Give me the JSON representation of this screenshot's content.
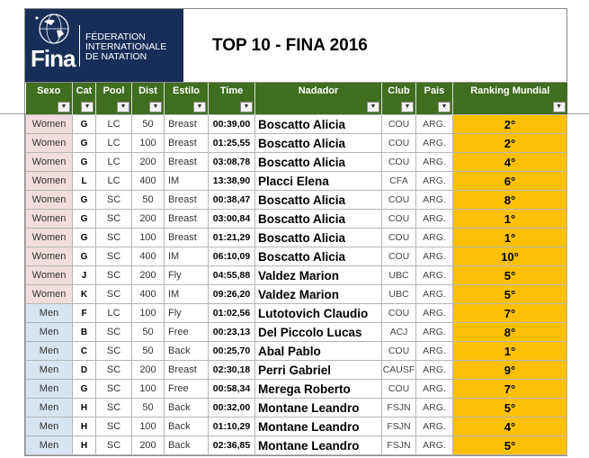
{
  "header": {
    "logo_word": "Fina",
    "org_lines": [
      "FÉDERATION",
      "INTERNATIONALE",
      "DE NATATION"
    ],
    "title": "TOP 10  - FINA 2016"
  },
  "columns": [
    "Sexo",
    "Cat",
    "Pool",
    "Dist",
    "Estilo",
    "Time",
    "Nadador",
    "Club",
    "Pais",
    "Ranking Mundial"
  ],
  "filter_glyph": "▼",
  "rows": [
    {
      "sexo": "Women",
      "cat": "G",
      "pool": "LC",
      "dist": "50",
      "estilo": "Breast",
      "time": "00:39,00",
      "nadador": "Boscatto Alicia",
      "club": "COU",
      "pais": "ARG.",
      "rank": "2°"
    },
    {
      "sexo": "Women",
      "cat": "G",
      "pool": "LC",
      "dist": "100",
      "estilo": "Breast",
      "time": "01:25,55",
      "nadador": "Boscatto Alicia",
      "club": "COU",
      "pais": "ARG.",
      "rank": "2°"
    },
    {
      "sexo": "Women",
      "cat": "G",
      "pool": "LC",
      "dist": "200",
      "estilo": "Breast",
      "time": "03:08,78",
      "nadador": "Boscatto Alicia",
      "club": "COU",
      "pais": "ARG.",
      "rank": "4°"
    },
    {
      "sexo": "Women",
      "cat": "L",
      "pool": "LC",
      "dist": "400",
      "estilo": "IM",
      "time": "13:38,90",
      "nadador": "Placci Elena",
      "club": "CFA",
      "pais": "ARG.",
      "rank": "6°"
    },
    {
      "sexo": "Women",
      "cat": "G",
      "pool": "SC",
      "dist": "50",
      "estilo": "Breast",
      "time": "00:38,47",
      "nadador": "Boscatto Alicia",
      "club": "COU",
      "pais": "ARG.",
      "rank": "8°"
    },
    {
      "sexo": "Women",
      "cat": "G",
      "pool": "SC",
      "dist": "200",
      "estilo": "Breast",
      "time": "03:00,84",
      "nadador": "Boscatto Alicia",
      "club": "COU",
      "pais": "ARG.",
      "rank": "1°"
    },
    {
      "sexo": "Women",
      "cat": "G",
      "pool": "SC",
      "dist": "100",
      "estilo": "Breast",
      "time": "01:21,29",
      "nadador": "Boscatto Alicia",
      "club": "COU",
      "pais": "ARG.",
      "rank": "1°"
    },
    {
      "sexo": "Women",
      "cat": "G",
      "pool": "SC",
      "dist": "400",
      "estilo": "IM",
      "time": "06:10,09",
      "nadador": "Boscatto Alicia",
      "club": "COU",
      "pais": "ARG.",
      "rank": "10°"
    },
    {
      "sexo": "Women",
      "cat": "J",
      "pool": "SC",
      "dist": "200",
      "estilo": "Fly",
      "time": "04:55,88",
      "nadador": "Valdez Marion",
      "club": "UBC",
      "pais": "ARG.",
      "rank": "5°"
    },
    {
      "sexo": "Women",
      "cat": "K",
      "pool": "SC",
      "dist": "400",
      "estilo": "IM",
      "time": "09:26,20",
      "nadador": "Valdez Marion",
      "club": "UBC",
      "pais": "ARG.",
      "rank": "5°"
    },
    {
      "sexo": "Men",
      "cat": "F",
      "pool": "LC",
      "dist": "100",
      "estilo": "Fly",
      "time": "01:02,56",
      "nadador": "Lutotovich Claudio",
      "club": "COU",
      "pais": "ARG.",
      "rank": "7°"
    },
    {
      "sexo": "Men",
      "cat": "B",
      "pool": "SC",
      "dist": "50",
      "estilo": "Free",
      "time": "00:23,13",
      "nadador": "Del Piccolo Lucas",
      "club": "ACJ",
      "pais": "ARG.",
      "rank": "8°"
    },
    {
      "sexo": "Men",
      "cat": "C",
      "pool": "SC",
      "dist": "50",
      "estilo": "Back",
      "time": "00:25,70",
      "nadador": "Abal Pablo",
      "club": "COU",
      "pais": "ARG.",
      "rank": "1°"
    },
    {
      "sexo": "Men",
      "cat": "D",
      "pool": "SC",
      "dist": "200",
      "estilo": "Breast",
      "time": "02:30,18",
      "nadador": "Perri Gabriel",
      "club": "CAUSF",
      "pais": "ARG.",
      "rank": "9°"
    },
    {
      "sexo": "Men",
      "cat": "G",
      "pool": "SC",
      "dist": "100",
      "estilo": "Free",
      "time": "00:58,34",
      "nadador": "Merega Roberto",
      "club": "COU",
      "pais": "ARG.",
      "rank": "7°"
    },
    {
      "sexo": "Men",
      "cat": "H",
      "pool": "SC",
      "dist": "50",
      "estilo": "Back",
      "time": "00:32,00",
      "nadador": "Montane Leandro",
      "club": "FSJN",
      "pais": "ARG.",
      "rank": "5°"
    },
    {
      "sexo": "Men",
      "cat": "H",
      "pool": "SC",
      "dist": "100",
      "estilo": "Back",
      "time": "01:10,29",
      "nadador": "Montane Leandro",
      "club": "FSJN",
      "pais": "ARG.",
      "rank": "4°"
    },
    {
      "sexo": "Men",
      "cat": "H",
      "pool": "SC",
      "dist": "200",
      "estilo": "Back",
      "time": "02:36,85",
      "nadador": "Montane Leandro",
      "club": "FSJN",
      "pais": "ARG.",
      "rank": "5°"
    }
  ],
  "colors": {
    "header_bg": "#3f6e1f",
    "rank_bg": "#fdc005",
    "women_bg": "#f3dcdc",
    "men_bg": "#d9e4f2",
    "logo_bg": "#172f57"
  }
}
